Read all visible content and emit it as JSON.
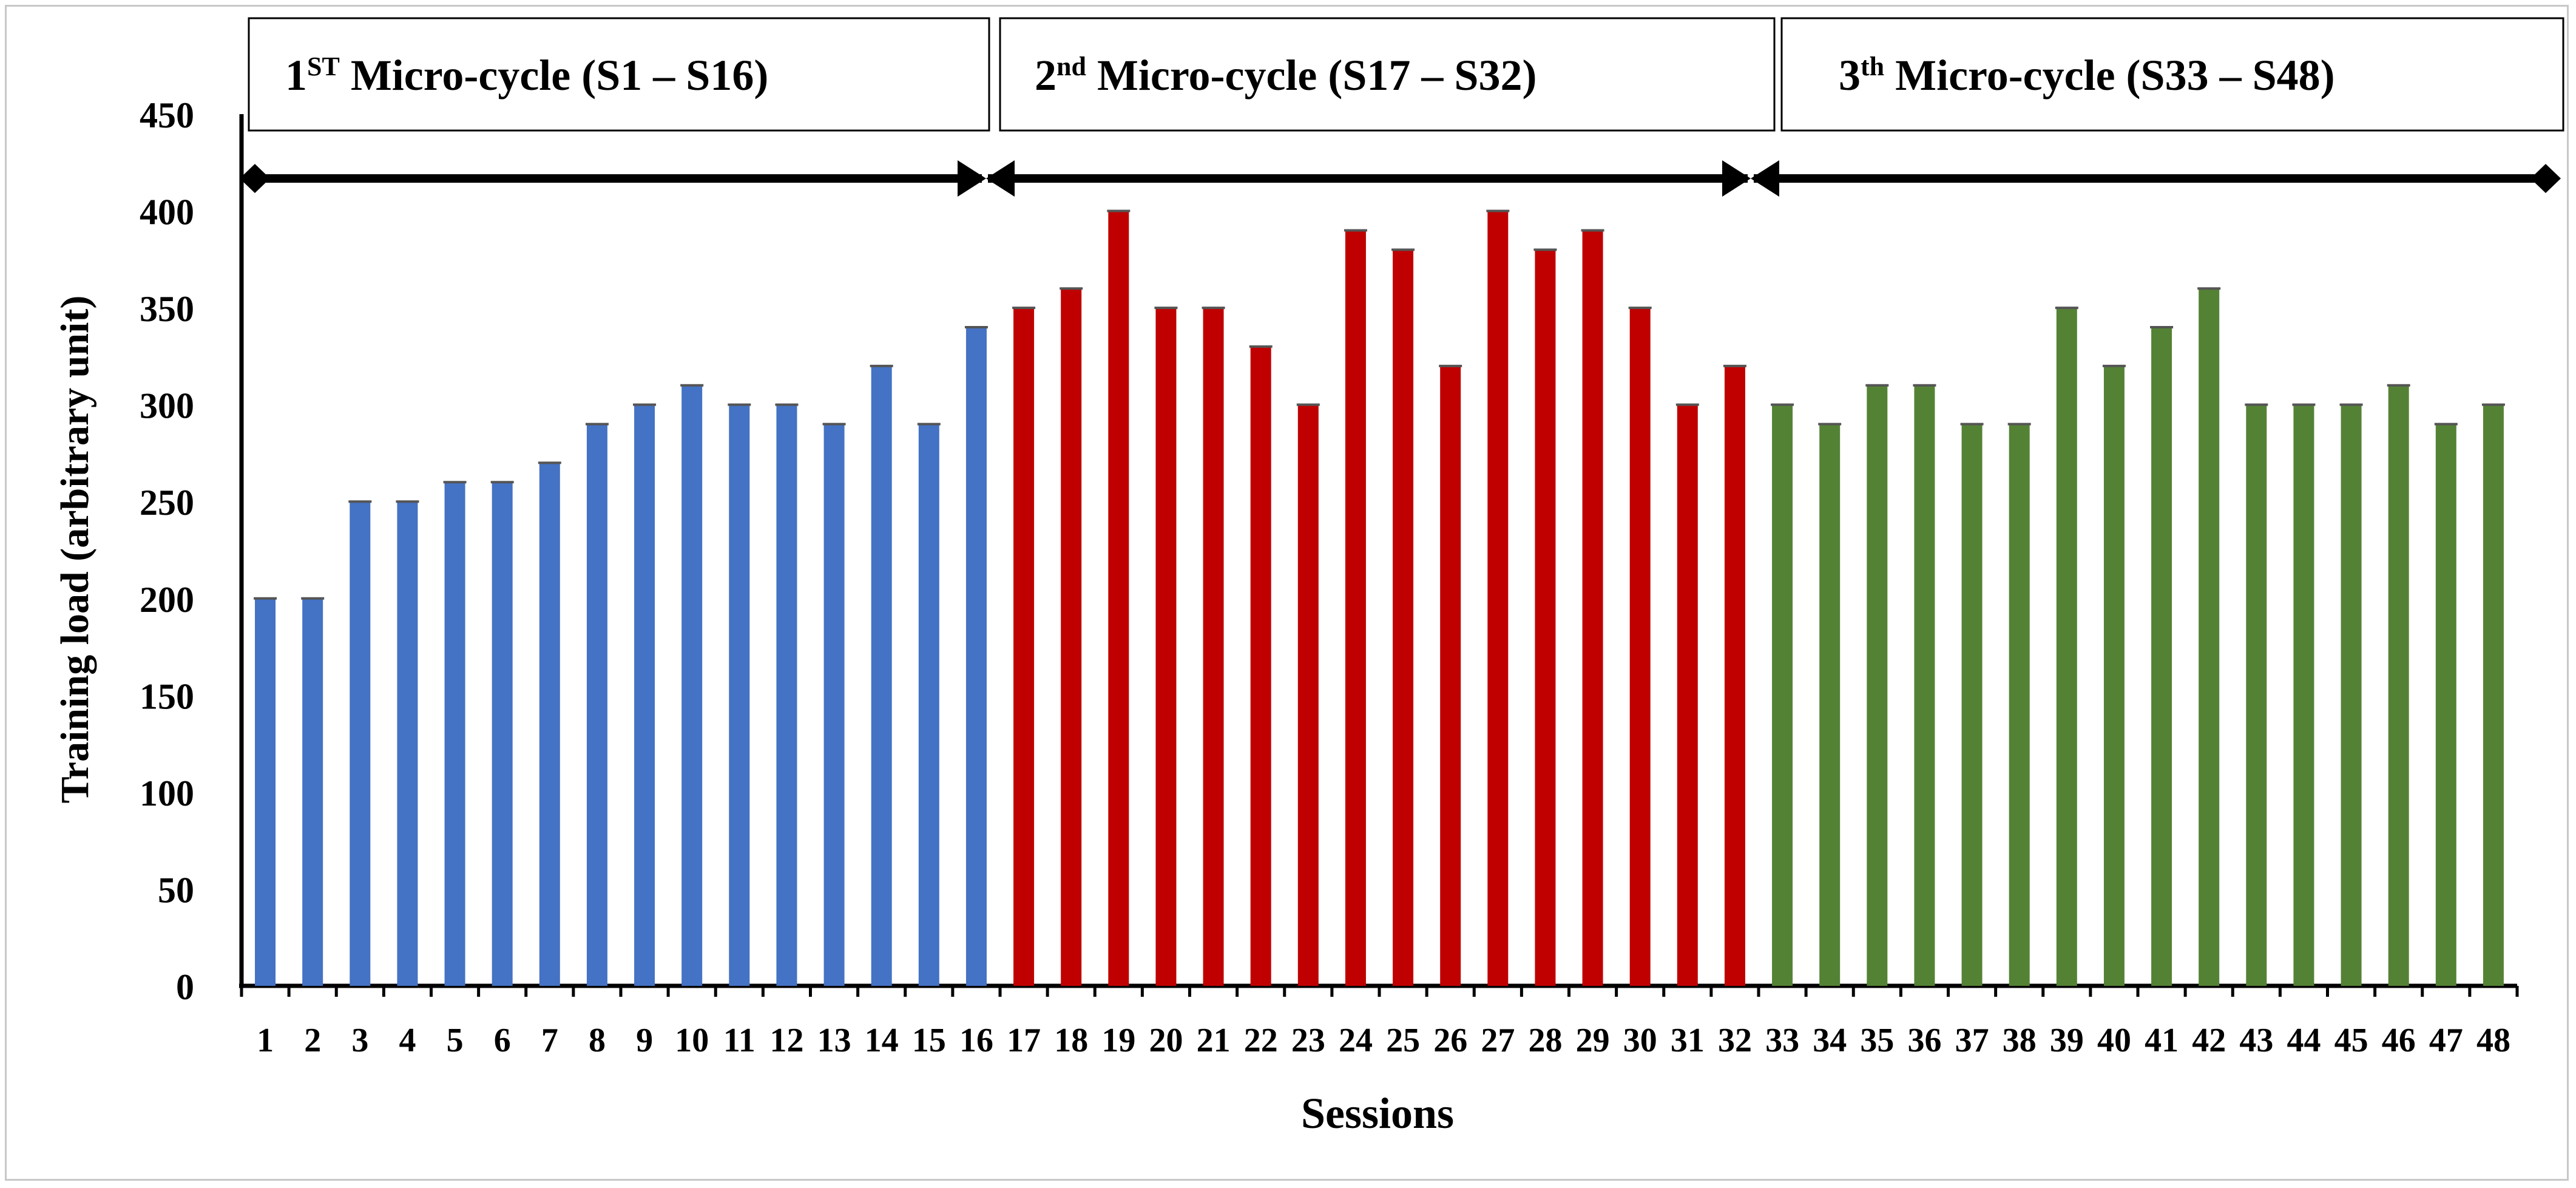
{
  "chart_data": {
    "type": "bar",
    "title": "",
    "xlabel": "Sessions",
    "ylabel": "Training load (arbitrary unit)",
    "ylim": [
      0,
      450
    ],
    "yticks": [
      "0",
      "50",
      "100",
      "150",
      "200",
      "250",
      "300",
      "350",
      "400",
      "450"
    ],
    "grid": false,
    "categories": [
      "1",
      "2",
      "3",
      "4",
      "5",
      "6",
      "7",
      "8",
      "9",
      "10",
      "11",
      "12",
      "13",
      "14",
      "15",
      "16",
      "17",
      "18",
      "19",
      "20",
      "21",
      "22",
      "23",
      "24",
      "25",
      "26",
      "27",
      "28",
      "29",
      "30",
      "31",
      "32",
      "33",
      "34",
      "35",
      "36",
      "37",
      "38",
      "39",
      "40",
      "41",
      "42",
      "43",
      "44",
      "45",
      "46",
      "47",
      "48"
    ],
    "values": [
      200,
      200,
      250,
      250,
      260,
      260,
      270,
      290,
      300,
      310,
      300,
      300,
      290,
      320,
      290,
      340,
      350,
      360,
      400,
      350,
      350,
      330,
      300,
      390,
      380,
      320,
      400,
      380,
      390,
      350,
      300,
      320,
      300,
      290,
      310,
      310,
      290,
      290,
      350,
      320,
      340,
      360,
      300,
      300,
      300,
      310,
      290,
      300
    ],
    "cycles": [
      {
        "name_main": "1",
        "name_sup": "ST",
        "name_rest": " Micro-cycle (S1 – S16)",
        "start": 1,
        "end": 16,
        "color": "#4472C4"
      },
      {
        "name_main": "2",
        "name_sup": "nd",
        "name_rest": " Micro-cycle (S17 – S32)",
        "start": 17,
        "end": 32,
        "color": "#C00000"
      },
      {
        "name_main": "3",
        "name_sup": "th",
        "name_rest": " Micro-cycle (S33 – S48)",
        "start": 33,
        "end": 48,
        "color": "#548235"
      }
    ]
  }
}
